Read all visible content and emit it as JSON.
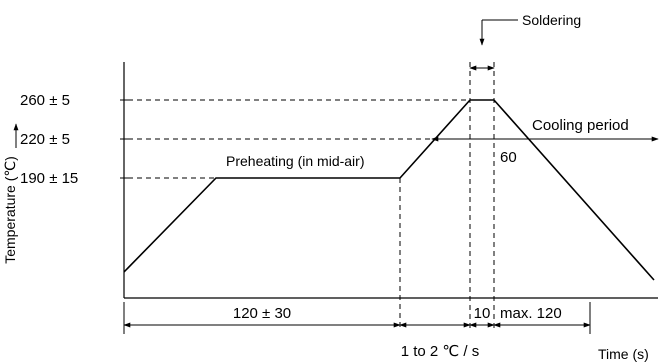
{
  "axes": {
    "y_label": "Temperature (℃)",
    "x_label": "Time (s)"
  },
  "temperature_levels": [
    "260 ± 5",
    "220 ± 5",
    "190 ± 15"
  ],
  "annotations": {
    "soldering": "Soldering",
    "cooling_period": "Cooling period",
    "preheating": "Preheating (in mid-air)",
    "cooling_time": "60"
  },
  "durations": {
    "preheat": "120 ± 30",
    "ramp_rate": "1 to 2 ℃ / s",
    "peak": "10",
    "cooling_max": "max. 120"
  }
}
